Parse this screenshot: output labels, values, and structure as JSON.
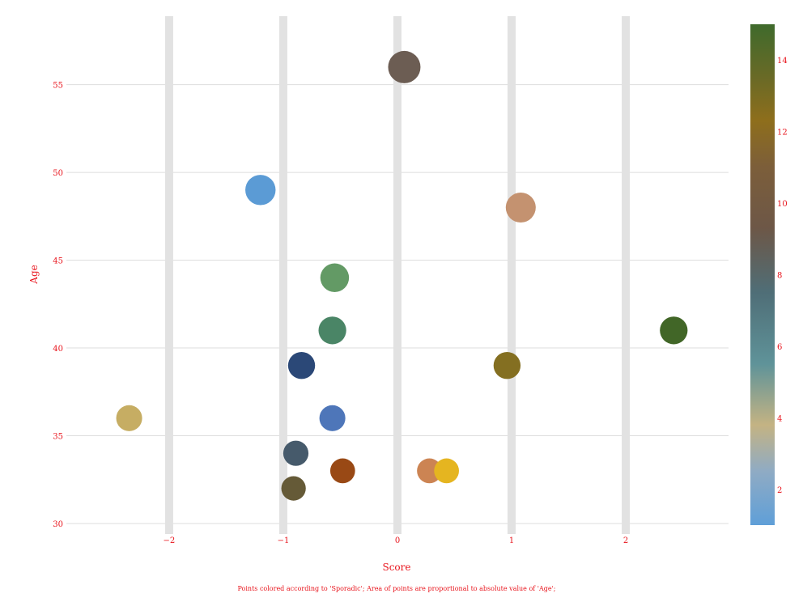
{
  "chart_data": {
    "type": "scatter",
    "xlabel": "Score",
    "ylabel": "Age",
    "caption": "Points colored according to 'Sporadic'; Area of points are proportional to absolute value of 'Age';",
    "xlim": [
      -2.9,
      2.9
    ],
    "ylim": [
      29.4,
      58.9
    ],
    "x_ticks": [
      -2,
      -1,
      0,
      1,
      2
    ],
    "x_tick_labels": [
      "−2",
      "−1",
      "0",
      "1",
      "2"
    ],
    "y_ticks": [
      30,
      35,
      40,
      45,
      50,
      55
    ],
    "y_tick_labels": [
      "30",
      "35",
      "40",
      "45",
      "50",
      "55"
    ],
    "grid": {
      "x": true,
      "y": true
    },
    "colorbar": {
      "range": [
        1,
        15
      ],
      "ticks": [
        2,
        4,
        6,
        8,
        10,
        12,
        14
      ],
      "tick_labels": [
        "2",
        "4",
        "6",
        "8",
        "10",
        "12",
        "14"
      ],
      "stops": [
        {
          "value": 1,
          "color": "#5f9fd8"
        },
        {
          "value": 2.5,
          "color": "#8fabc4"
        },
        {
          "value": 3.8,
          "color": "#c4b383"
        },
        {
          "value": 5.5,
          "color": "#5f9399"
        },
        {
          "value": 7.5,
          "color": "#4f6e77"
        },
        {
          "value": 9.3,
          "color": "#6d5747"
        },
        {
          "value": 11,
          "color": "#7c5e3a"
        },
        {
          "value": 12.3,
          "color": "#8e6e1c"
        },
        {
          "value": 13.5,
          "color": "#6a6a26"
        },
        {
          "value": 15,
          "color": "#3f6a2c"
        }
      ]
    },
    "points": [
      {
        "x": 0.06,
        "y": 56,
        "color": "#6c5d53"
      },
      {
        "x": -1.2,
        "y": 49,
        "color": "#5b9bd5"
      },
      {
        "x": 1.08,
        "y": 48,
        "color": "#c49270"
      },
      {
        "x": -0.55,
        "y": 44,
        "color": "#639a65"
      },
      {
        "x": -0.57,
        "y": 41,
        "color": "#4a8566"
      },
      {
        "x": 2.42,
        "y": 41,
        "color": "#416627"
      },
      {
        "x": -0.84,
        "y": 39,
        "color": "#2b4877"
      },
      {
        "x": 0.96,
        "y": 39,
        "color": "#846f21"
      },
      {
        "x": -2.35,
        "y": 36,
        "color": "#c6ad63"
      },
      {
        "x": -0.57,
        "y": 36,
        "color": "#4e76b9"
      },
      {
        "x": -0.89,
        "y": 34,
        "color": "#465a6b"
      },
      {
        "x": -0.48,
        "y": 33,
        "color": "#994915"
      },
      {
        "x": 0.28,
        "y": 33,
        "color": "#cc8453"
      },
      {
        "x": 0.43,
        "y": 33,
        "color": "#e5b520"
      },
      {
        "x": -0.91,
        "y": 32,
        "color": "#655a37"
      }
    ]
  }
}
